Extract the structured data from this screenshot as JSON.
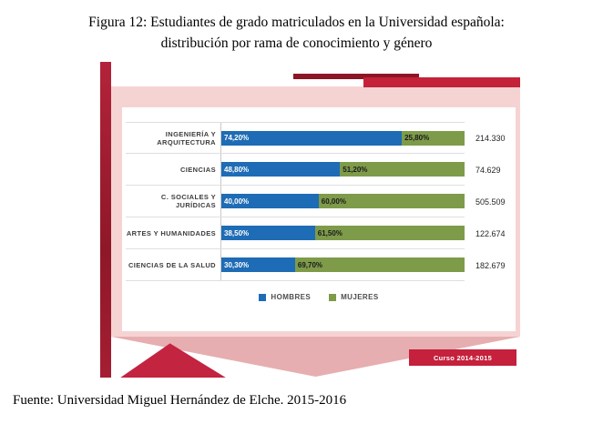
{
  "page": {
    "title_line1": "Figura 12: Estudiantes de grado matriculados en la Universidad española:",
    "title_line2": "distribución por rama de conocimiento y género",
    "source_line": "Fuente: Universidad Miguel Hernández de Elche. 2015-2016"
  },
  "chart_data": {
    "type": "bar",
    "orientation": "horizontal",
    "stacked_percent": true,
    "title": "Estudiantes de grado matriculados en la Universidad española: distribución por rama de conocimiento y género",
    "categories": [
      "INGENIERÍA Y ARQUITECTURA",
      "CIENCIAS",
      "C. SOCIALES Y JURÍDICAS",
      "ARTES Y HUMANIDADES",
      "CIENCIAS DE LA SALUD"
    ],
    "series": [
      {
        "name": "HOMBRES",
        "color": "#1e6cb5",
        "values": [
          74.2,
          48.8,
          40.0,
          38.5,
          30.3
        ],
        "labels": [
          "74,20%",
          "48,80%",
          "40,00%",
          "38,50%",
          "30,30%"
        ]
      },
      {
        "name": "MUJERES",
        "color": "#7e9b4a",
        "values": [
          25.8,
          51.2,
          60.0,
          61.5,
          69.7
        ],
        "labels": [
          "25,80%",
          "51,20%",
          "60,00%",
          "61,50%",
          "69,70%"
        ]
      }
    ],
    "totals": [
      "214.330",
      "74.629",
      "505.509",
      "122.674",
      "182.679"
    ],
    "xlim": [
      0,
      100
    ],
    "legend_position": "bottom",
    "grid": "horizontal-row-separators",
    "badge": "Curso 2014-2015"
  },
  "colors": {
    "hombres_blue": "#1e6cb5",
    "mujeres_olive": "#7e9b4a",
    "slide_pink": "#f6d3d3",
    "crimson": "#c32239",
    "dark_red": "#8c1626",
    "rose": "#e6aeb0"
  }
}
